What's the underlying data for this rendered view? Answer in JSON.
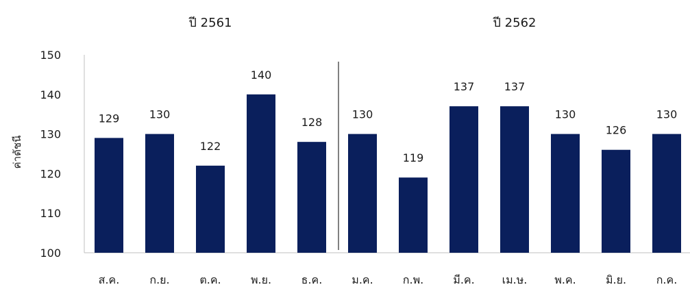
{
  "chart_data": {
    "type": "bar",
    "ylabel": "ค่าดัชนี",
    "ylim": [
      100,
      150
    ],
    "yticks": [
      100,
      110,
      120,
      130,
      140,
      150
    ],
    "categories": [
      "ส.ค.",
      "ก.ย.",
      "ต.ค.",
      "พ.ย.",
      "ธ.ค.",
      "ม.ค.",
      "ก.พ.",
      "มี.ค.",
      "เม.ษ.",
      "พ.ค.",
      "มิ.ย.",
      "ก.ค."
    ],
    "values": [
      129,
      130,
      122,
      140,
      128,
      130,
      119,
      137,
      137,
      130,
      126,
      130
    ],
    "data_labels": [
      "129",
      "130",
      "122",
      "140",
      "128",
      "130",
      "119",
      "137",
      "137",
      "130",
      "126",
      "130"
    ],
    "groups": [
      {
        "label": "ปี 2561",
        "count": 5
      },
      {
        "label": "ปี 2562",
        "count": 7
      }
    ],
    "bar_color": "#0a1f5c",
    "divider_color": "#808080",
    "grid": false
  }
}
